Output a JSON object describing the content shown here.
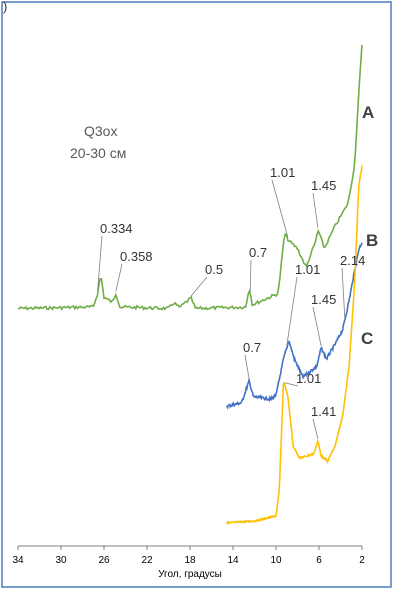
{
  "chart_data": {
    "type": "line",
    "xlabel": "Угол, градусы",
    "x_ticks": [
      34,
      30,
      26,
      22,
      18,
      14,
      10,
      6,
      2
    ],
    "xlim": [
      34,
      2
    ],
    "x_reversed": true,
    "top_fragment": ")",
    "sample_label": [
      "Q3ox",
      "20-30 см"
    ],
    "series": [
      {
        "name": "A",
        "color": "#70AD47",
        "x_start": 34,
        "x_end": 2,
        "points": [
          [
            34,
            10
          ],
          [
            27,
            12
          ],
          [
            26.6,
            30
          ],
          [
            26.3,
            55
          ],
          [
            26,
            25
          ],
          [
            25.2,
            18
          ],
          [
            24.9,
            30
          ],
          [
            24.5,
            12
          ],
          [
            20,
            10
          ],
          [
            19.5,
            18
          ],
          [
            19,
            11
          ],
          [
            17.9,
            24
          ],
          [
            17.5,
            10
          ],
          [
            12.8,
            12
          ],
          [
            12.5,
            38
          ],
          [
            12.2,
            15
          ],
          [
            9.8,
            30
          ],
          [
            9.2,
            110
          ],
          [
            8.8,
            100
          ],
          [
            8,
            90
          ],
          [
            7.2,
            65
          ],
          [
            6.3,
            100
          ],
          [
            6.1,
            115
          ],
          [
            5.5,
            90
          ],
          [
            4.5,
            120
          ],
          [
            3.3,
            150
          ],
          [
            2.7,
            200
          ],
          [
            2.2,
            320
          ],
          [
            2,
            360
          ]
        ],
        "peaks": [
          {
            "x": 26.6,
            "label": "0.334"
          },
          {
            "x": 24.9,
            "label": "0.358"
          },
          {
            "x": 17.9,
            "label": "0.5"
          },
          {
            "x": 12.4,
            "label": "0.7"
          },
          {
            "x": 8.9,
            "label": "1.01"
          },
          {
            "x": 6.1,
            "label": "1.45"
          }
        ]
      },
      {
        "name": "B",
        "color": "#4472C4",
        "x_start": 14.6,
        "x_end": 2,
        "points": [
          [
            14.6,
            5
          ],
          [
            13.2,
            10
          ],
          [
            12.5,
            40
          ],
          [
            12.1,
            18
          ],
          [
            10.5,
            15
          ],
          [
            10,
            20
          ],
          [
            9.3,
            70
          ],
          [
            8.8,
            95
          ],
          [
            8.3,
            70
          ],
          [
            7.5,
            45
          ],
          [
            6.2,
            60
          ],
          [
            5.8,
            85
          ],
          [
            5.3,
            70
          ],
          [
            4.5,
            90
          ],
          [
            3.8,
            110
          ],
          [
            3.2,
            150
          ],
          [
            2.7,
            190
          ],
          [
            2.3,
            220
          ],
          [
            2,
            230
          ]
        ],
        "peaks": [
          {
            "x": 12.5,
            "label": "0.7"
          },
          {
            "x": 9.0,
            "label": "1.01"
          },
          {
            "x": 5.8,
            "label": "1.45"
          },
          {
            "x": 3.6,
            "label": "2.14"
          }
        ]
      },
      {
        "name": "C",
        "color": "#FFC000",
        "x_start": 14.6,
        "x_end": 2,
        "points": [
          [
            14.6,
            3
          ],
          [
            12,
            5
          ],
          [
            10,
            10
          ],
          [
            9.7,
            35
          ],
          [
            9.3,
            145
          ],
          [
            8.9,
            130
          ],
          [
            8.4,
            80
          ],
          [
            7.8,
            68
          ],
          [
            6.5,
            72
          ],
          [
            6.1,
            85
          ],
          [
            5.8,
            70
          ],
          [
            5.2,
            65
          ],
          [
            4.5,
            80
          ],
          [
            3.8,
            110
          ],
          [
            3.2,
            160
          ],
          [
            2.7,
            240
          ],
          [
            2.3,
            340
          ],
          [
            2,
            360
          ]
        ],
        "peaks": [
          {
            "x": 9.2,
            "label": "1.01"
          },
          {
            "x": 6.1,
            "label": "1.41"
          }
        ]
      }
    ]
  }
}
